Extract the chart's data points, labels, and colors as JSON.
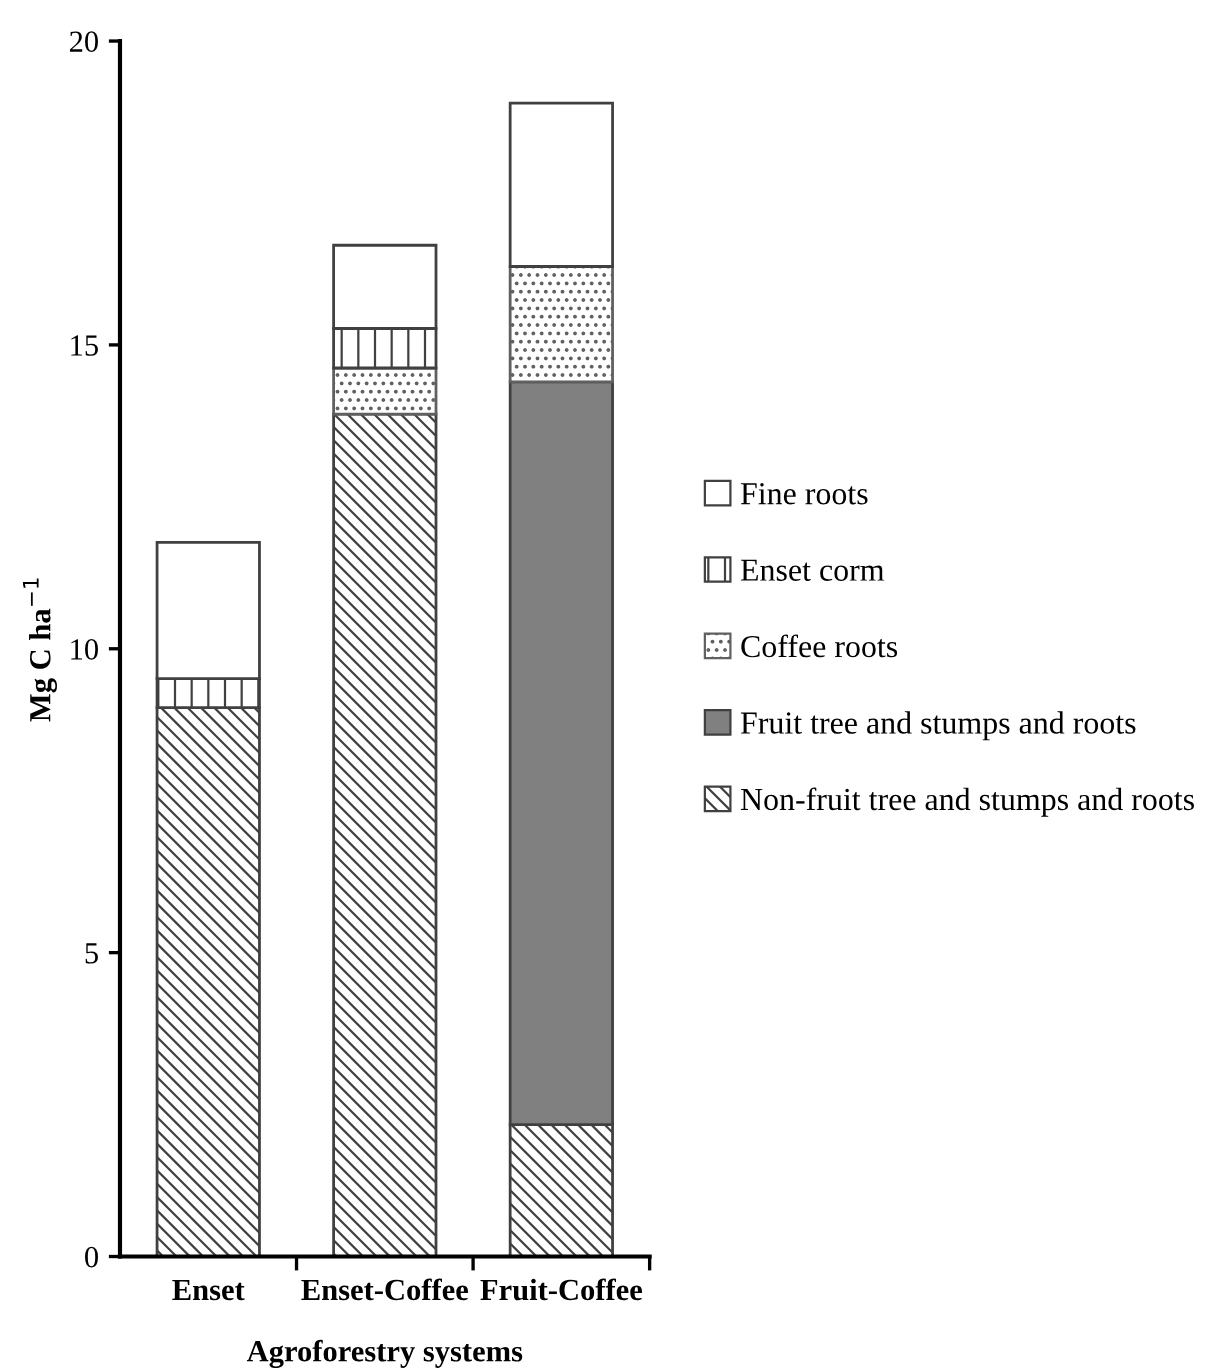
{
  "chart_data": {
    "type": "bar",
    "stacked": true,
    "xlabel": "Agroforestry systems",
    "ylabel": "Mg C ha$^{−1}$",
    "categories": [
      "Enset",
      "Enset-Coffee",
      "Fruit-Coffee"
    ],
    "series": [
      {
        "name": "Non-fruit tree and stumps and roots",
        "color": "#404040",
        "values": [
          9.03,
          13.86,
          2.17
        ]
      },
      {
        "name": "Fruit tree and stumps and roots",
        "color": "#808080",
        "values": [
          null,
          null,
          12.22
        ]
      },
      {
        "name": "Coffee roots",
        "color": "#606060",
        "values": [
          null,
          0.76,
          1.9
        ]
      },
      {
        "name": "Enset corm",
        "color": "#404040",
        "values": [
          0.48,
          0.65,
          null
        ]
      },
      {
        "name": "Fine roots",
        "color": "#ffffff",
        "values": [
          2.24,
          1.37,
          2.69
        ]
      }
    ],
    "ylim": [
      0,
      20
    ],
    "yticks": [
      0,
      5,
      10,
      15,
      20
    ],
    "grid": false,
    "legend": "right"
  }
}
